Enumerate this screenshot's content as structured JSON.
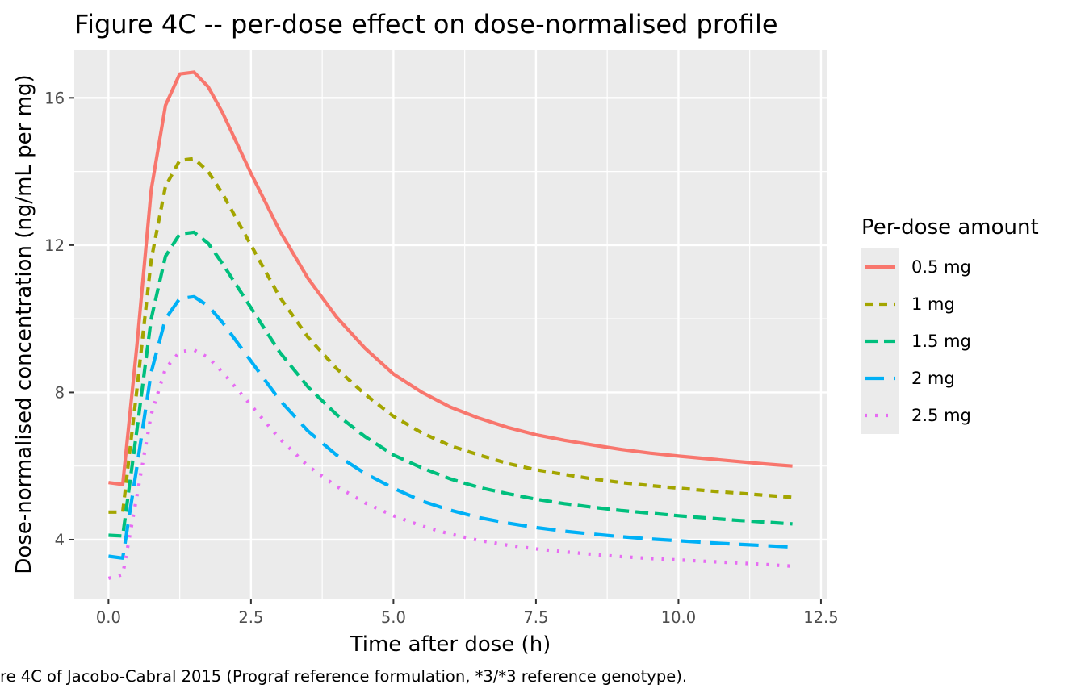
{
  "chart_data": {
    "type": "line",
    "title": "Figure 4C -- per-dose effect on dose-normalised profile",
    "xlabel": "Time after dose (h)",
    "ylabel": "Dose-normalised concentration (ng/mL per mg)",
    "caption": "re 4C of Jacobo-Cabral 2015 (Prograf reference formulation, *3/*3 reference genotype).",
    "xlim": [
      -0.6,
      12.6
    ],
    "ylim": [
      2.4,
      17.3
    ],
    "x_ticks": [
      0,
      2.5,
      5,
      7.5,
      10,
      12.5
    ],
    "x_tick_labels": [
      "0.0",
      "2.5",
      "5.0",
      "7.5",
      "10.0",
      "12.5"
    ],
    "y_ticks": [
      4,
      8,
      12,
      16
    ],
    "y_tick_labels": [
      "4",
      "8",
      "12",
      "16"
    ],
    "grid": true,
    "legend": {
      "title": "Per-dose amount",
      "position": "right"
    },
    "x": [
      0,
      0.25,
      0.5,
      0.75,
      1,
      1.25,
      1.5,
      1.75,
      2,
      2.5,
      3,
      3.5,
      4,
      4.5,
      5,
      5.5,
      6,
      6.5,
      7,
      7.5,
      8,
      8.5,
      9,
      9.5,
      10,
      10.5,
      11,
      11.5,
      12
    ],
    "series": [
      {
        "name": "0.5 mg",
        "color": "#F8766D",
        "dash": "solid",
        "values": [
          5.55,
          5.5,
          9.3,
          13.5,
          15.8,
          16.65,
          16.7,
          16.3,
          15.6,
          13.95,
          12.4,
          11.1,
          10.05,
          9.2,
          8.5,
          8.0,
          7.6,
          7.3,
          7.05,
          6.85,
          6.7,
          6.57,
          6.45,
          6.35,
          6.27,
          6.2,
          6.13,
          6.06,
          6.0
        ]
      },
      {
        "name": "1 mg",
        "color": "#A3A500",
        "dash": "short",
        "values": [
          4.75,
          4.75,
          8.1,
          11.6,
          13.6,
          14.3,
          14.35,
          14.0,
          13.4,
          12.0,
          10.6,
          9.5,
          8.65,
          7.95,
          7.35,
          6.9,
          6.55,
          6.3,
          6.07,
          5.9,
          5.77,
          5.65,
          5.55,
          5.47,
          5.4,
          5.33,
          5.27,
          5.21,
          5.15
        ]
      },
      {
        "name": "1.5 mg",
        "color": "#00BF7D",
        "dash": "medium",
        "values": [
          4.12,
          4.1,
          7.0,
          10.0,
          11.7,
          12.3,
          12.35,
          12.05,
          11.5,
          10.3,
          9.1,
          8.15,
          7.4,
          6.8,
          6.3,
          5.95,
          5.65,
          5.42,
          5.25,
          5.1,
          4.98,
          4.88,
          4.79,
          4.72,
          4.65,
          4.59,
          4.53,
          4.48,
          4.43
        ]
      },
      {
        "name": "2 mg",
        "color": "#00B0F6",
        "dash": "long",
        "values": [
          3.55,
          3.5,
          6.0,
          8.55,
          10.0,
          10.55,
          10.6,
          10.35,
          9.9,
          8.85,
          7.8,
          6.95,
          6.3,
          5.8,
          5.4,
          5.05,
          4.8,
          4.6,
          4.45,
          4.33,
          4.23,
          4.15,
          4.08,
          4.02,
          3.97,
          3.92,
          3.88,
          3.84,
          3.8
        ]
      },
      {
        "name": "2.5 mg",
        "color": "#E76BF3",
        "dash": "dotted",
        "values": [
          2.95,
          3.05,
          5.2,
          7.4,
          8.65,
          9.1,
          9.15,
          8.95,
          8.55,
          7.65,
          6.75,
          6.0,
          5.45,
          5.0,
          4.65,
          4.37,
          4.15,
          3.98,
          3.85,
          3.75,
          3.67,
          3.6,
          3.54,
          3.49,
          3.45,
          3.41,
          3.37,
          3.33,
          3.28
        ]
      }
    ]
  }
}
